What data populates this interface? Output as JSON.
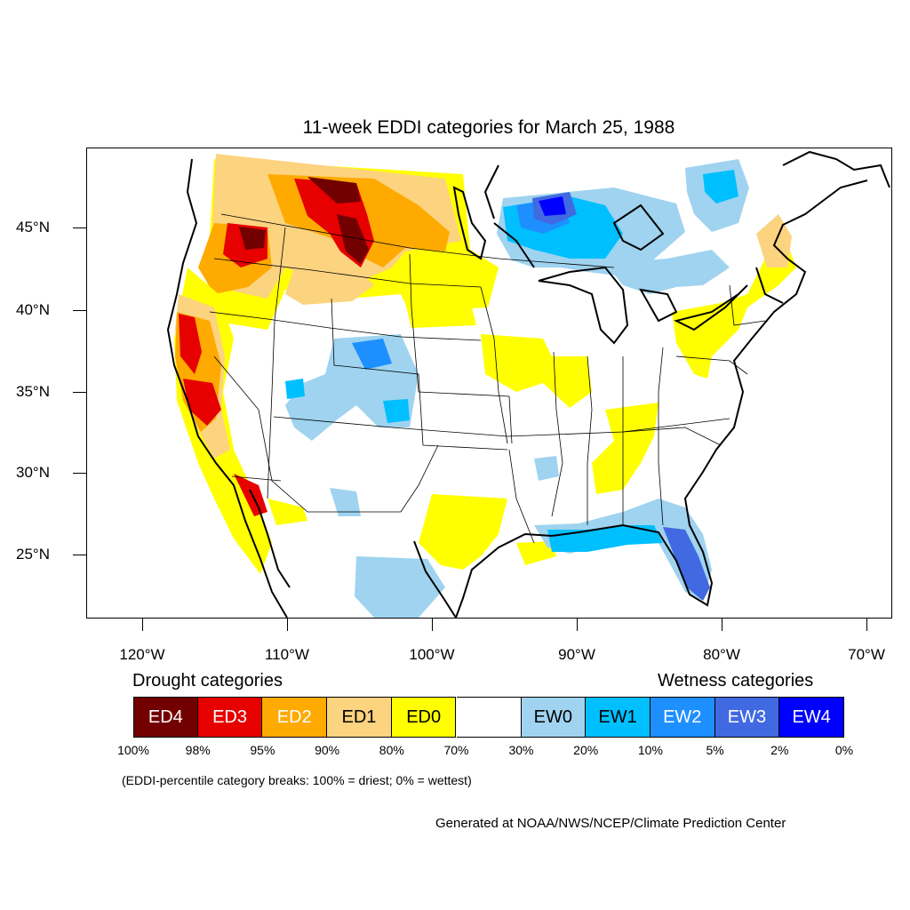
{
  "title": "11-week EDDI categories for March 25, 1988",
  "latitude_labels": [
    "45°N",
    "40°N",
    "35°N",
    "30°N",
    "25°N"
  ],
  "longitude_labels": [
    "120°W",
    "110°W",
    "100°W",
    "90°W",
    "80°W",
    "70°W"
  ],
  "legend": {
    "drought_heading": "Drought categories",
    "wetness_heading": "Wetness categories",
    "categories": [
      {
        "label": "ED4",
        "color": "#730000",
        "text_color": "#ffffff"
      },
      {
        "label": "ED3",
        "color": "#e60000",
        "text_color": "#ffffff"
      },
      {
        "label": "ED2",
        "color": "#ffaa00",
        "text_color": "#ffffff"
      },
      {
        "label": "ED1",
        "color": "#fcd37f",
        "text_color": "#000000"
      },
      {
        "label": "ED0",
        "color": "#ffff00",
        "text_color": "#000000"
      },
      {
        "label": "",
        "color": "#ffffff",
        "text_color": "#000000"
      },
      {
        "label": "EW0",
        "color": "#9fd3f0",
        "text_color": "#000000"
      },
      {
        "label": "EW1",
        "color": "#00bfff",
        "text_color": "#000000"
      },
      {
        "label": "EW2",
        "color": "#1e8fff",
        "text_color": "#ffffff"
      },
      {
        "label": "EW3",
        "color": "#4169e1",
        "text_color": "#ffffff"
      },
      {
        "label": "EW4",
        "color": "#0000ff",
        "text_color": "#ffffff"
      }
    ],
    "break_labels": [
      "100%",
      "98%",
      "95%",
      "90%",
      "80%",
      "70%",
      "30%",
      "20%",
      "10%",
      "5%",
      "2%",
      "0%"
    ],
    "note": "(EDDI-percentile category breaks: 100% = driest; 0% = wettest)"
  },
  "credit": "Generated at NOAA/NWS/NCEP/Climate Prediction Center"
}
